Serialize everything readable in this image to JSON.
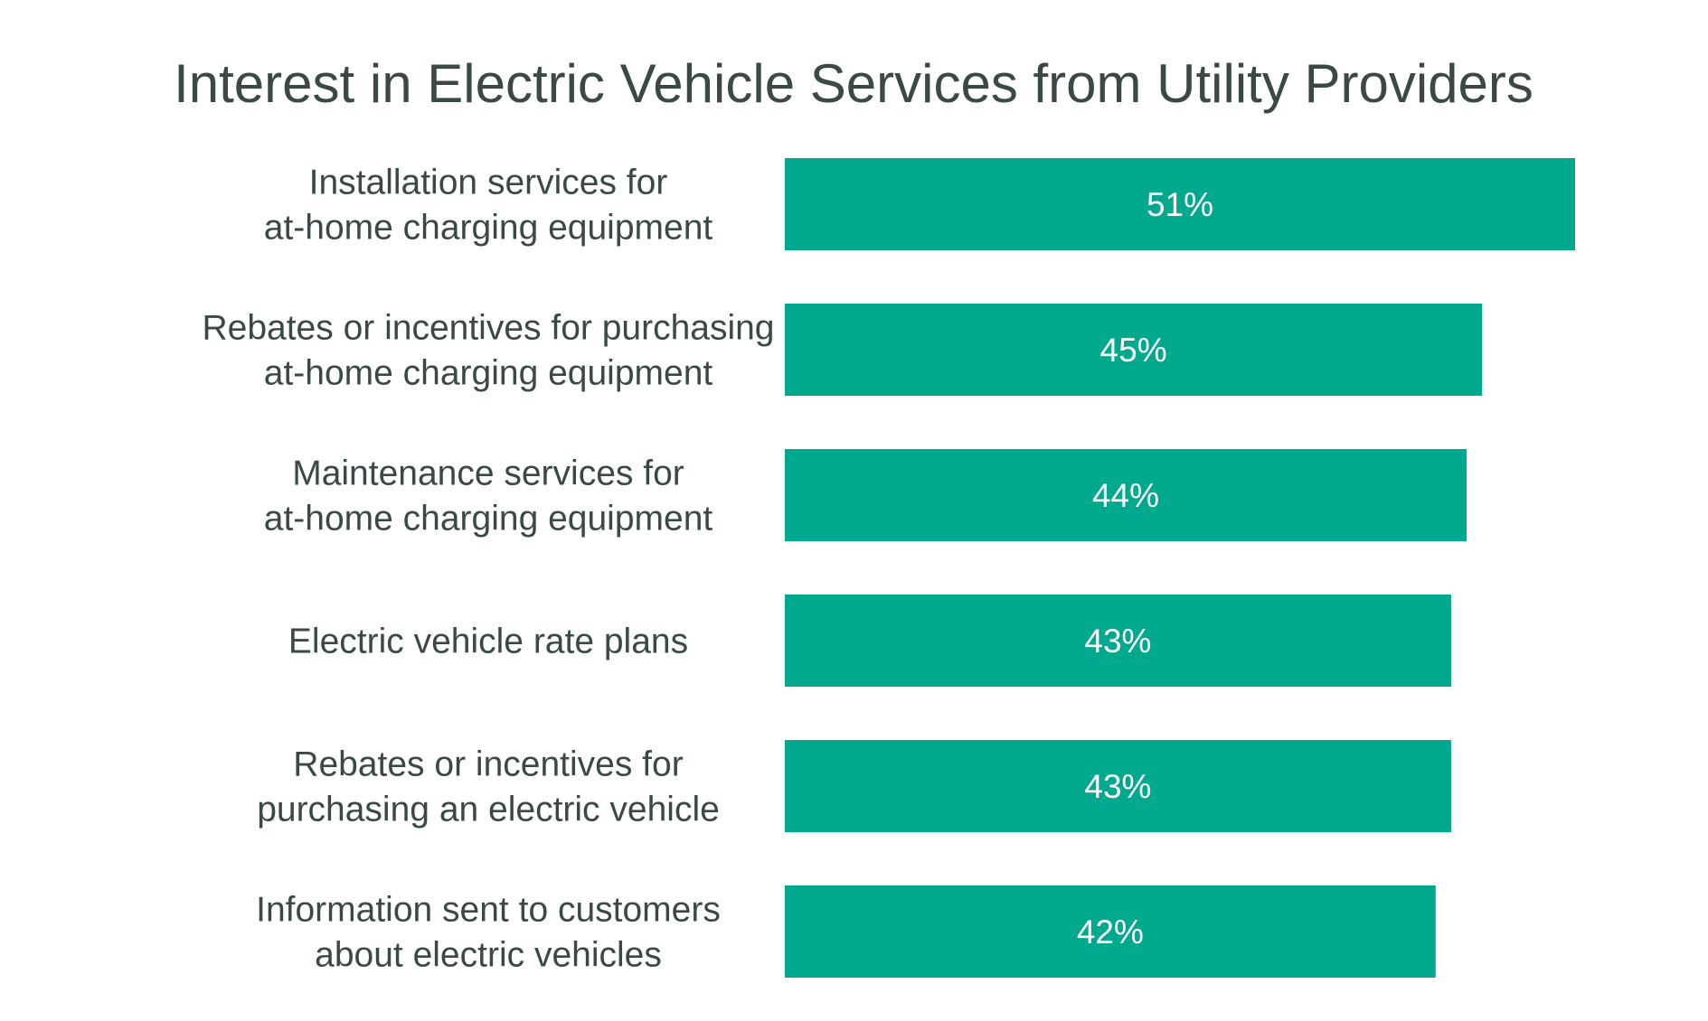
{
  "chart_data": {
    "type": "bar",
    "orientation": "horizontal",
    "title": "Interest in Electric Vehicle Services from Utility Providers",
    "categories": [
      [
        "Installation services for",
        "at-home charging equipment"
      ],
      [
        "Rebates or incentives for purchasing",
        "at-home charging equipment"
      ],
      [
        "Maintenance services for",
        "at-home charging equipment"
      ],
      [
        "Electric vehicle rate plans"
      ],
      [
        "Rebates or incentives for",
        "purchasing an electric vehicle"
      ],
      [
        "Information sent to customers",
        "about electric vehicles"
      ]
    ],
    "values": [
      51,
      45,
      44,
      43,
      43,
      42
    ],
    "value_labels": [
      "51%",
      "45%",
      "44%",
      "43%",
      "43%",
      "42%"
    ],
    "xlim": [
      0,
      51
    ],
    "grid": false,
    "legend": "none",
    "colors": {
      "bar": "#00A88E",
      "bar_label": "#ffffff",
      "text": "#3a4a43"
    }
  }
}
